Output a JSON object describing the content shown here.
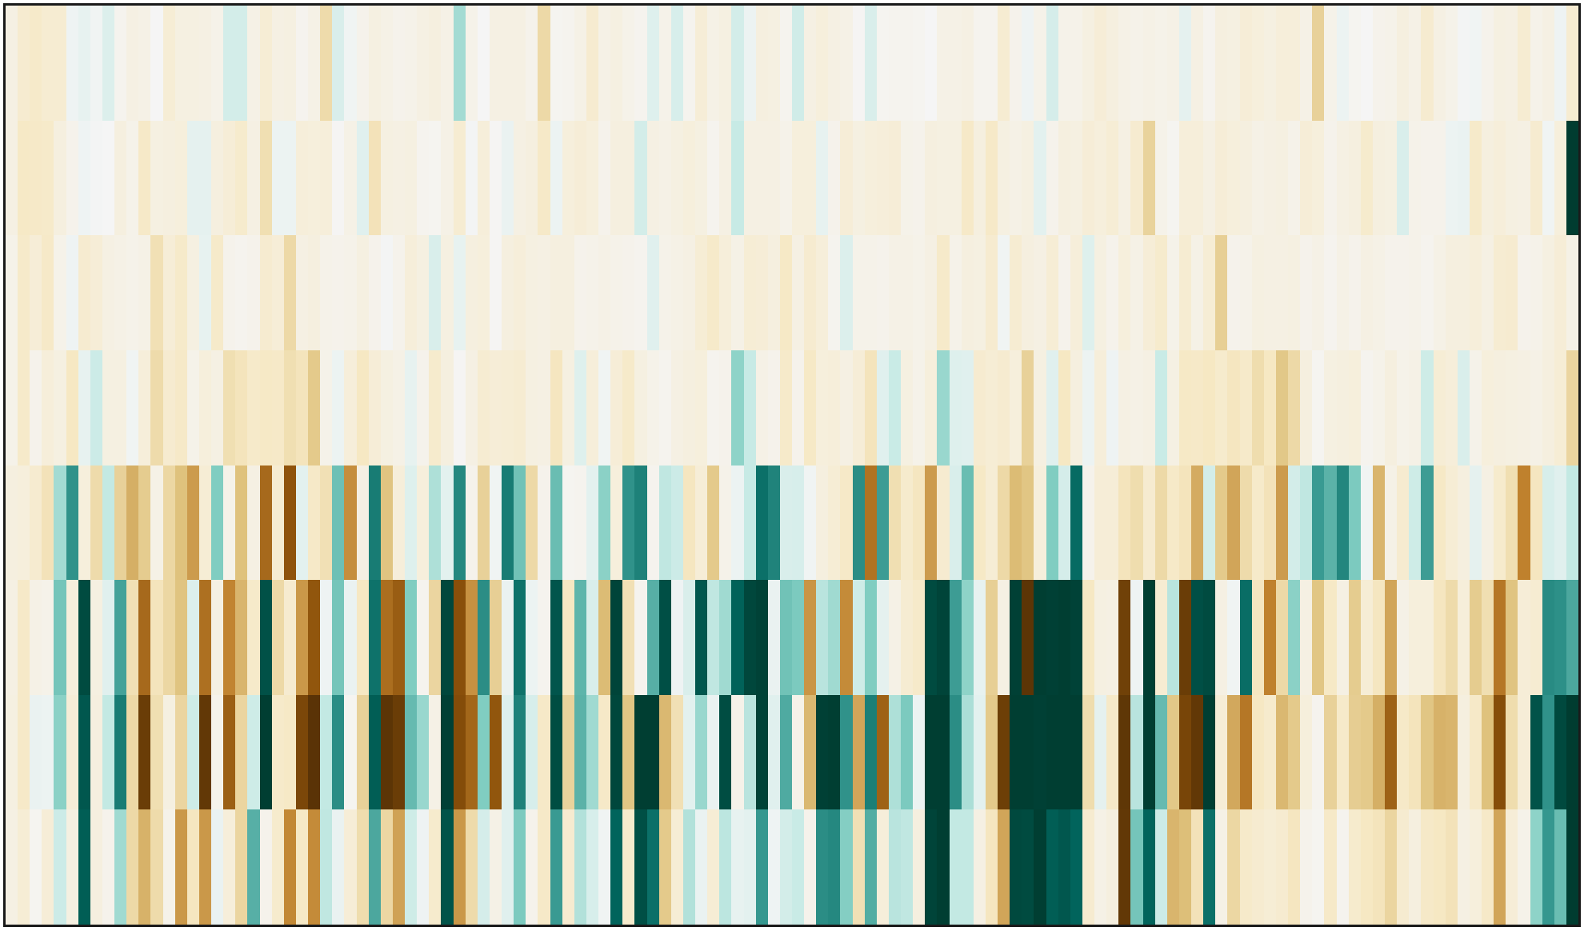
{
  "chart_data": {
    "type": "heatmap",
    "title": "",
    "xlabel": "",
    "ylabel": "",
    "n_rows": 8,
    "n_cols": 130,
    "value_range": [
      -1,
      1
    ],
    "colormap": "BrBG",
    "axes_visible": false,
    "colorbar": false,
    "cells": [
      [
        -0.07,
        -0.15,
        -0.17,
        -0.14,
        -0.14,
        0.03,
        0.06,
        0.02,
        0.11,
        -0.03,
        -0.07,
        -0.06,
        0.0,
        -0.13,
        -0.08,
        -0.08,
        -0.07,
        -0.05,
        0.15,
        0.15,
        -0.06,
        -0.13,
        -0.07,
        -0.08,
        -0.03,
        -0.06,
        -0.27,
        0.12,
        0.02,
        -0.04,
        -0.08,
        -0.06,
        -0.04,
        -0.05,
        -0.07,
        -0.09,
        -0.06,
        0.3,
        -0.05,
        -0.0,
        -0.07,
        -0.07,
        -0.07,
        -0.04,
        -0.28,
        -0.02,
        -0.03,
        -0.06,
        -0.15,
        -0.06,
        -0.08,
        -0.05,
        -0.03,
        0.1,
        -0.05,
        0.13,
        -0.03,
        -0.12,
        -0.06,
        -0.08,
        0.15,
        0.04,
        -0.09,
        -0.08,
        -0.03,
        0.16,
        -0.07,
        -0.1,
        -0.07,
        -0.06,
        -0.01,
        0.12,
        -0.02,
        -0.03,
        -0.03,
        -0.02,
        0.0,
        -0.06,
        -0.06,
        -0.07,
        -0.03,
        -0.03,
        -0.14,
        -0.04,
        0.03,
        -0.05,
        0.14,
        -0.05,
        -0.05,
        -0.08,
        -0.12,
        -0.09,
        -0.06,
        -0.05,
        -0.06,
        -0.05,
        -0.06,
        0.07,
        -0.07,
        -0.03,
        -0.09,
        -0.08,
        -0.12,
        -0.1,
        -0.08,
        -0.11,
        -0.11,
        -0.06,
        -0.32,
        -0.05,
        0.04,
        -0.02,
        0.0,
        -0.04,
        -0.05,
        -0.09,
        -0.06,
        -0.15,
        -0.07,
        -0.05,
        0.01,
        0.02,
        -0.04,
        -0.08,
        -0.07,
        -0.14,
        -0.05,
        -0.07,
        0.03,
        -0.14
      ],
      [
        -0.07,
        -0.19,
        -0.18,
        -0.17,
        -0.09,
        -0.04,
        0.03,
        0.01,
        -0.0,
        -0.09,
        -0.05,
        -0.18,
        -0.08,
        -0.09,
        -0.1,
        0.07,
        0.07,
        -0.09,
        -0.12,
        -0.16,
        -0.07,
        -0.25,
        0.04,
        0.04,
        -0.11,
        -0.1,
        -0.11,
        -0.01,
        -0.06,
        0.09,
        -0.23,
        -0.08,
        -0.07,
        -0.08,
        -0.03,
        -0.02,
        -0.06,
        -0.14,
        0.01,
        -0.11,
        -0.01,
        0.05,
        -0.07,
        -0.09,
        -0.18,
        0.04,
        -0.1,
        -0.12,
        -0.1,
        -0.04,
        -0.09,
        -0.09,
        0.15,
        -0.07,
        -0.06,
        -0.08,
        -0.1,
        -0.08,
        -0.03,
        -0.07,
        0.2,
        -0.07,
        -0.07,
        -0.07,
        -0.05,
        -0.1,
        -0.1,
        0.06,
        -0.04,
        -0.12,
        -0.08,
        -0.1,
        -0.11,
        -0.12,
        -0.05,
        -0.04,
        -0.09,
        -0.08,
        -0.08,
        -0.18,
        -0.09,
        -0.18,
        -0.08,
        -0.06,
        -0.08,
        0.08,
        -0.04,
        -0.09,
        -0.08,
        -0.12,
        -0.1,
        -0.13,
        -0.07,
        -0.15,
        -0.31,
        -0.05,
        -0.02,
        -0.11,
        -0.11,
        -0.07,
        -0.12,
        -0.1,
        -0.09,
        -0.06,
        -0.07,
        -0.08,
        -0.05,
        -0.12,
        -0.1,
        -0.04,
        -0.07,
        -0.09,
        -0.16,
        -0.09,
        -0.08,
        0.12,
        -0.05,
        -0.04,
        -0.04,
        0.04,
        0.05,
        -0.17,
        -0.09,
        -0.11,
        -0.08,
        -0.07,
        -0.15,
        0.02,
        -0.1
      ],
      [
        -0.05,
        -0.17,
        -0.12,
        -0.18,
        -0.05,
        0.03,
        -0.15,
        -0.12,
        -0.07,
        -0.06,
        -0.05,
        -0.06,
        -0.24,
        -0.12,
        -0.17,
        -0.08,
        0.06,
        -0.17,
        -0.04,
        -0.03,
        -0.04,
        -0.15,
        -0.12,
        -0.28,
        -0.07,
        -0.09,
        -0.05,
        -0.04,
        -0.05,
        -0.08,
        -0.04,
        0.01,
        -0.04,
        -0.11,
        -0.08,
        0.12,
        -0.08,
        0.06,
        -0.09,
        -0.1,
        -0.01,
        -0.09,
        -0.11,
        -0.08,
        -0.07,
        -0.09,
        -0.09,
        -0.04,
        -0.05,
        -0.06,
        -0.05,
        -0.04,
        -0.03,
        0.09,
        -0.05,
        -0.06,
        -0.07,
        -0.13,
        -0.17,
        -0.11,
        -0.06,
        -0.13,
        -0.12,
        -0.09,
        -0.19,
        -0.07,
        -0.15,
        -0.11,
        -0.03,
        0.11,
        -0.05,
        -0.05,
        -0.04,
        -0.06,
        -0.06,
        -0.05,
        -0.07,
        -0.17,
        -0.05,
        -0.09,
        -0.08,
        -0.15,
        0.02,
        -0.14,
        -0.09,
        -0.07,
        -0.13,
        -0.04,
        -0.11,
        0.1,
        -0.08,
        -0.04,
        -0.1,
        -0.06,
        -0.12,
        -0.16,
        -0.05,
        -0.14,
        -0.06,
        -0.13,
        -0.33,
        -0.04,
        -0.05,
        -0.08,
        -0.07,
        -0.07,
        -0.08,
        -0.04,
        -0.06,
        -0.03,
        -0.06,
        -0.04,
        -0.07,
        -0.06,
        -0.04,
        -0.04,
        -0.05,
        -0.03,
        -0.06,
        -0.09,
        -0.09,
        -0.11,
        -0.07,
        -0.14,
        -0.15,
        -0.04,
        -0.05,
        -0.08,
        -0.12,
        -0.06
      ],
      [
        -0.05,
        -0.17,
        -0.04,
        -0.11,
        -0.08,
        -0.2,
        0.06,
        0.18,
        -0.08,
        -0.08,
        0.02,
        -0.11,
        -0.27,
        -0.15,
        -0.18,
        -0.05,
        -0.1,
        -0.07,
        -0.25,
        -0.22,
        -0.17,
        -0.19,
        -0.18,
        -0.25,
        -0.22,
        -0.36,
        -0.05,
        0.04,
        -0.11,
        -0.2,
        -0.12,
        -0.08,
        -0.06,
        0.06,
        -0.04,
        -0.16,
        -0.09,
        -0.01,
        -0.07,
        -0.14,
        -0.12,
        -0.13,
        -0.14,
        -0.08,
        -0.07,
        -0.21,
        -0.08,
        0.1,
        -0.11,
        0.02,
        -0.12,
        -0.17,
        -0.08,
        -0.05,
        -0.03,
        -0.07,
        -0.09,
        -0.1,
        -0.03,
        -0.04,
        0.36,
        0.2,
        -0.06,
        -0.04,
        -0.17,
        -0.04,
        -0.19,
        -0.1,
        -0.11,
        -0.07,
        -0.12,
        -0.22,
        0.09,
        0.19,
        -0.08,
        -0.05,
        -0.1,
        0.33,
        0.1,
        0.09,
        -0.15,
        -0.13,
        -0.15,
        -0.1,
        -0.32,
        -0.08,
        0.09,
        -0.2,
        -0.09,
        0.04,
        -0.11,
        0.03,
        -0.07,
        -0.06,
        -0.07,
        0.19,
        -0.07,
        -0.19,
        -0.18,
        -0.2,
        -0.16,
        -0.21,
        -0.17,
        -0.26,
        -0.2,
        -0.37,
        -0.28,
        -0.09,
        -0.02,
        -0.08,
        -0.09,
        -0.1,
        -0.03,
        -0.05,
        -0.09,
        -0.05,
        -0.06,
        0.17,
        -0.13,
        -0.11,
        0.12,
        -0.05,
        -0.1,
        -0.09,
        -0.08,
        -0.07,
        -0.06,
        -0.09,
        -0.13,
        -0.3
      ],
      [
        -0.09,
        -0.1,
        -0.15,
        -0.23,
        0.3,
        0.62,
        -0.1,
        -0.27,
        0.21,
        -0.32,
        -0.46,
        -0.35,
        -0.06,
        -0.29,
        -0.4,
        -0.52,
        -0.13,
        0.4,
        -0.05,
        -0.4,
        -0.07,
        -0.7,
        -0.14,
        -0.79,
        0.08,
        -0.18,
        -0.24,
        0.45,
        -0.56,
        -0.07,
        0.71,
        -0.39,
        -0.11,
        0.1,
        -0.1,
        0.27,
        0.08,
        0.66,
        -0.04,
        -0.32,
        0.02,
        0.71,
        0.44,
        -0.28,
        -0.04,
        0.46,
        -0.02,
        -0.03,
        0.08,
        0.37,
        -0.1,
        0.62,
        0.69,
        -0.03,
        0.22,
        0.18,
        -0.21,
        -0.12,
        -0.36,
        -0.05,
        0.04,
        0.2,
        0.76,
        0.68,
        0.12,
        0.13,
        0.02,
        -0.09,
        -0.13,
        -0.18,
        0.64,
        -0.66,
        0.58,
        -0.25,
        -0.16,
        -0.21,
        -0.52,
        -0.15,
        0.12,
        0.46,
        -0.19,
        -0.13,
        -0.28,
        -0.42,
        -0.38,
        -0.1,
        0.4,
        0.14,
        0.78,
        -0.04,
        -0.12,
        -0.12,
        -0.22,
        -0.26,
        -0.15,
        -0.28,
        -0.18,
        -0.22,
        -0.47,
        0.15,
        -0.36,
        -0.49,
        -0.27,
        -0.17,
        -0.23,
        -0.52,
        0.15,
        0.22,
        0.59,
        0.5,
        0.67,
        0.41,
        0.02,
        -0.44,
        -0.06,
        -0.15,
        0.17,
        0.58,
        -0.19,
        -0.13,
        -0.09,
        0.07,
        -0.07,
        -0.16,
        -0.25,
        -0.6,
        -0.21,
        0.13,
        0.09,
        0.21
      ],
      [
        -0.07,
        -0.18,
        -0.06,
        -0.05,
        0.43,
        -0.1,
        0.93,
        -0.08,
        0.09,
        0.56,
        -0.24,
        -0.7,
        -0.22,
        -0.29,
        -0.39,
        0.11,
        -0.67,
        -0.07,
        -0.59,
        -0.44,
        -0.17,
        0.9,
        -0.28,
        -0.15,
        -0.53,
        -0.78,
        0.03,
        0.43,
        0.05,
        -0.2,
        0.75,
        -0.68,
        -0.75,
        0.4,
        -0.03,
        -0.3,
        0.95,
        -0.81,
        -0.55,
        0.64,
        -0.33,
        0.05,
        0.75,
        0.04,
        -0.03,
        0.88,
        -0.2,
        0.49,
        0.12,
        -0.42,
        0.96,
        -0.24,
        -0.03,
        0.51,
        0.91,
        0.03,
        0.12,
        0.87,
        0.22,
        0.31,
        0.82,
        0.95,
        0.97,
        0.05,
        0.44,
        0.41,
        -0.54,
        0.24,
        0.31,
        -0.57,
        0.17,
        0.4,
        0.07,
        -0.06,
        -0.14,
        -0.17,
        0.93,
        0.96,
        0.58,
        0.36,
        0.06,
        -0.33,
        -0.07,
        0.98,
        -0.97,
        0.99,
        0.98,
        0.99,
        0.97,
        -0.2,
        -0.08,
        -0.07,
        -0.9,
        0.03,
        0.99,
        -0.14,
        0.24,
        -0.92,
        0.91,
        0.93,
        -0.07,
        0.02,
        0.77,
        -0.21,
        -0.6,
        -0.28,
        0.37,
        -0.07,
        -0.38,
        -0.19,
        -0.07,
        -0.35,
        -0.13,
        -0.21,
        -0.49,
        -0.06,
        -0.1,
        -0.1,
        -0.21,
        -0.27,
        -0.11,
        -0.35,
        -0.25,
        -0.64,
        -0.39,
        -0.12,
        -0.14,
        0.65,
        0.63,
        0.54
      ],
      [
        -0.08,
        -0.18,
        0.05,
        0.04,
        0.37,
        -0.12,
        0.87,
        -0.09,
        0.21,
        0.71,
        -0.28,
        -0.92,
        -0.25,
        -0.08,
        -0.3,
        0.17,
        -0.95,
        -0.04,
        -0.74,
        -0.3,
        0.17,
        0.99,
        -0.17,
        -0.19,
        -0.86,
        -0.98,
        0.21,
        0.64,
        -0.02,
        -0.32,
        0.84,
        -0.97,
        -0.92,
        0.47,
        0.33,
        -0.06,
        0.98,
        -0.83,
        -0.71,
        0.4,
        -0.78,
        0.1,
        0.69,
        0.13,
        -0.18,
        0.92,
        -0.31,
        0.5,
        0.31,
        -0.18,
        0.95,
        -0.38,
        0.99,
        0.99,
        -0.43,
        -0.24,
        0.08,
        0.33,
        0.05,
        0.92,
        -0.05,
        0.24,
        0.97,
        0.09,
        0.53,
        -0.05,
        -0.43,
        0.98,
        0.99,
        0.62,
        -0.49,
        0.7,
        -0.73,
        0.27,
        0.41,
        0.04,
        0.99,
        0.99,
        0.64,
        0.28,
        0.08,
        -0.36,
        -0.91,
        0.99,
        0.99,
        0.98,
        0.99,
        0.99,
        0.99,
        -0.26,
        0.07,
        -0.18,
        -0.96,
        0.24,
        0.99,
        0.47,
        -0.37,
        -0.87,
        -0.95,
        0.99,
        -0.12,
        -0.48,
        -0.64,
        -0.2,
        -0.16,
        -0.43,
        -0.36,
        -0.1,
        -0.03,
        -0.32,
        -0.17,
        -0.34,
        -0.36,
        -0.46,
        -0.73,
        -0.18,
        -0.22,
        -0.38,
        -0.45,
        -0.44,
        -0.09,
        -0.18,
        -0.4,
        -0.82,
        -0.26,
        -0.12,
        0.89,
        0.62,
        0.94
      ],
      [
        -0.07,
        -0.13,
        -0.02,
        -0.12,
        0.18,
        -0.08,
        0.84,
        -0.09,
        -0.04,
        0.31,
        -0.28,
        -0.45,
        -0.27,
        -0.05,
        -0.53,
        -0.21,
        -0.53,
        0.05,
        -0.11,
        -0.3,
        0.51,
        -0.04,
        -0.16,
        -0.58,
        -0.19,
        -0.57,
        0.22,
        0.05,
        -0.12,
        -0.26,
        0.54,
        -0.29,
        -0.5,
        0.17,
        0.03,
        -0.16,
        0.89,
        -0.53,
        -0.27,
        0.14,
        -0.06,
        0.09,
        0.41,
        -0.04,
        -0.18,
        0.59,
        -0.15,
        0.26,
        0.13,
        0.02,
        0.81,
        -0.16,
        0.91,
        0.76,
        -0.36,
        -0.13,
        0.26,
        0.05,
        -0.13,
        0.23,
        0.06,
        0.08,
        0.6,
        0.03,
        0.15,
        0.19,
        -0.04,
        0.64,
        0.66,
        0.39,
        -0.24,
        0.52,
        -0.11,
        0.24,
        0.22,
        -0.09,
        0.96,
        0.99,
        0.21,
        0.21,
        -0.07,
        -0.21,
        -0.49,
        0.94,
        0.93,
        0.99,
        0.84,
        0.87,
        0.81,
        -0.15,
        -0.06,
        -0.09,
        -0.95,
        0.43,
        0.81,
        0.18,
        -0.44,
        -0.41,
        -0.23,
        0.76,
        -0.06,
        -0.29,
        -0.17,
        -0.15,
        -0.13,
        -0.15,
        -0.21,
        -0.04,
        -0.02,
        -0.18,
        -0.03,
        -0.16,
        -0.2,
        -0.22,
        -0.3,
        -0.15,
        -0.09,
        -0.18,
        -0.2,
        -0.23,
        -0.07,
        -0.1,
        -0.18,
        -0.49,
        -0.12,
        -0.05,
        0.36,
        0.6,
        0.46
      ]
    ]
  }
}
